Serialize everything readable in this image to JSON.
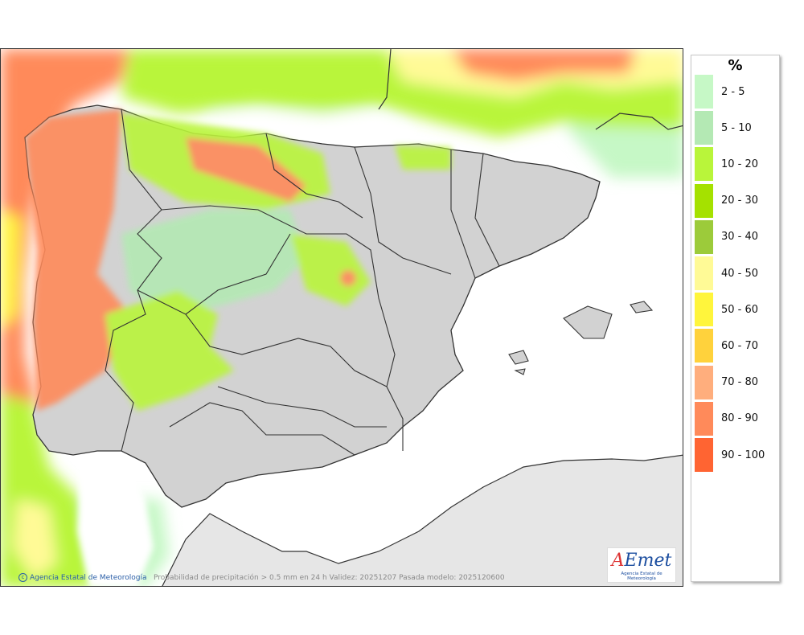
{
  "map": {
    "caption": "Probabilidad de precipitación > 0.5 mm en 24 h Validez: 20251207 Pasada modelo: 2025120600",
    "credit": "Agencia Estatal de Meteorología",
    "credit_icon": "copyright-icon",
    "logo": {
      "word": "AEmet",
      "subtitle": "Agencia Estatal de Meteorología"
    }
  },
  "legend": {
    "title": "%",
    "classes": [
      {
        "label": "2 - 5",
        "color": "#c6f8c6"
      },
      {
        "label": "5 - 10",
        "color": "#b4e9b4"
      },
      {
        "label": "10 - 20",
        "color": "#b9f53a"
      },
      {
        "label": "20 - 30",
        "color": "#a5e100"
      },
      {
        "label": "30 - 40",
        "color": "#9ccb3a"
      },
      {
        "label": "40 - 50",
        "color": "#fffa96"
      },
      {
        "label": "50 - 60",
        "color": "#fff53c"
      },
      {
        "label": "60 - 70",
        "color": "#ffd23c"
      },
      {
        "label": "70 - 80",
        "color": "#ffae7d"
      },
      {
        "label": "80 - 90",
        "color": "#ff8a5a"
      },
      {
        "label": "90 - 100",
        "color": "#ff6432"
      }
    ]
  },
  "colors": {
    "land": "#d2d2d2",
    "sea": "#ffffff",
    "africa": "#e6e6e6",
    "border": "#333333"
  }
}
